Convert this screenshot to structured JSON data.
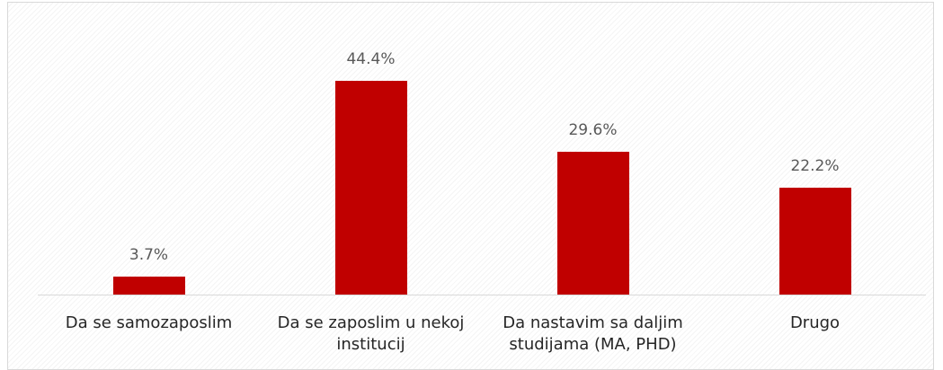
{
  "chart_data": {
    "type": "bar",
    "categories": [
      "Da se samozaposlim",
      "Da se zaposlim u nekoj institucij",
      "Da nastavim sa daljim studijama (MA, PHD)",
      "Drugo"
    ],
    "values": [
      3.7,
      44.4,
      29.6,
      22.2
    ],
    "value_labels": [
      "3.7%",
      "44.4%",
      "29.6%",
      "22.2%"
    ],
    "color": "#c00000",
    "ylim": [
      0,
      50
    ]
  }
}
